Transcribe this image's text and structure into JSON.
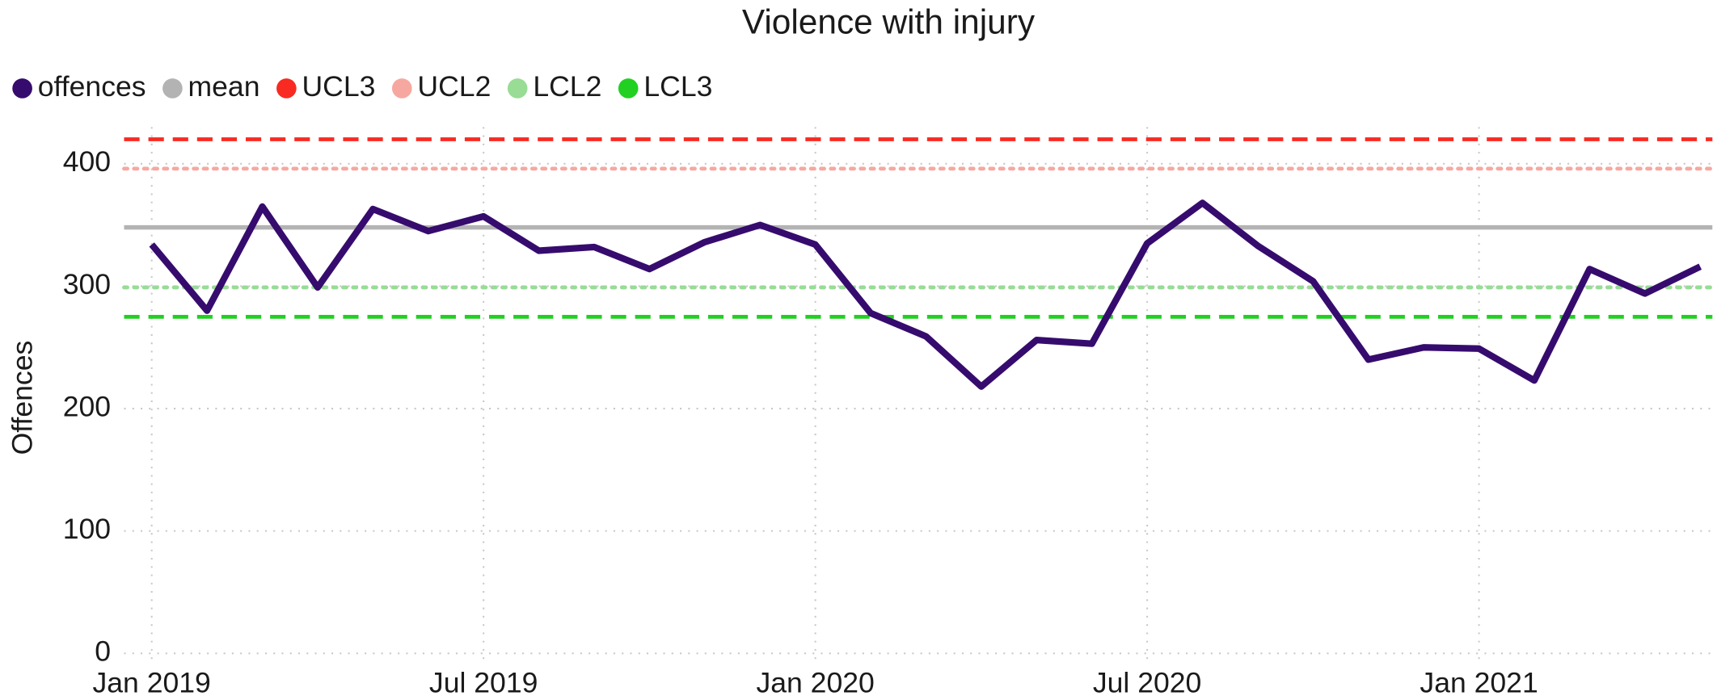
{
  "chart_data": {
    "type": "line",
    "title": "Violence with injury",
    "y_label": "Offences",
    "x": [
      "2019-01",
      "2019-02",
      "2019-03",
      "2019-04",
      "2019-05",
      "2019-06",
      "2019-07",
      "2019-08",
      "2019-09",
      "2019-10",
      "2019-11",
      "2019-12",
      "2020-01",
      "2020-02",
      "2020-03",
      "2020-04",
      "2020-05",
      "2020-06",
      "2020-07",
      "2020-08",
      "2020-09",
      "2020-10",
      "2020-11",
      "2020-12",
      "2021-01",
      "2021-02",
      "2021-03",
      "2021-04",
      "2021-05"
    ],
    "series": [
      {
        "name": "offences",
        "color": "#360b6e",
        "values": [
          334,
          280,
          365,
          299,
          363,
          345,
          357,
          329,
          332,
          314,
          336,
          350,
          334,
          278,
          259,
          218,
          256,
          253,
          335,
          368,
          333,
          304,
          240,
          250,
          249,
          223,
          314,
          294,
          316
        ]
      },
      {
        "name": "mean",
        "color": "#b3b3b3",
        "value": 348,
        "dash": "solid"
      },
      {
        "name": "UCL3",
        "color": "#f82a22",
        "value": 420,
        "dash": "dashed"
      },
      {
        "name": "UCL2",
        "color": "#f6a8a0",
        "value": 396,
        "dash": "dotted"
      },
      {
        "name": "LCL2",
        "color": "#98dc96",
        "value": 299,
        "dash": "dotted"
      },
      {
        "name": "LCL3",
        "color": "#22d022",
        "value": 275,
        "dash": "dashed"
      }
    ],
    "xticks": [
      {
        "value": "2019-01",
        "label": "Jan 2019"
      },
      {
        "value": "2019-07",
        "label": "Jul 2019"
      },
      {
        "value": "2020-01",
        "label": "Jan 2020"
      },
      {
        "value": "2020-07",
        "label": "Jul 2020"
      },
      {
        "value": "2021-01",
        "label": "Jan 2021"
      }
    ],
    "ylim": [
      -5,
      430
    ],
    "yticks": [
      0,
      100,
      200,
      300,
      400
    ],
    "grid": true
  }
}
